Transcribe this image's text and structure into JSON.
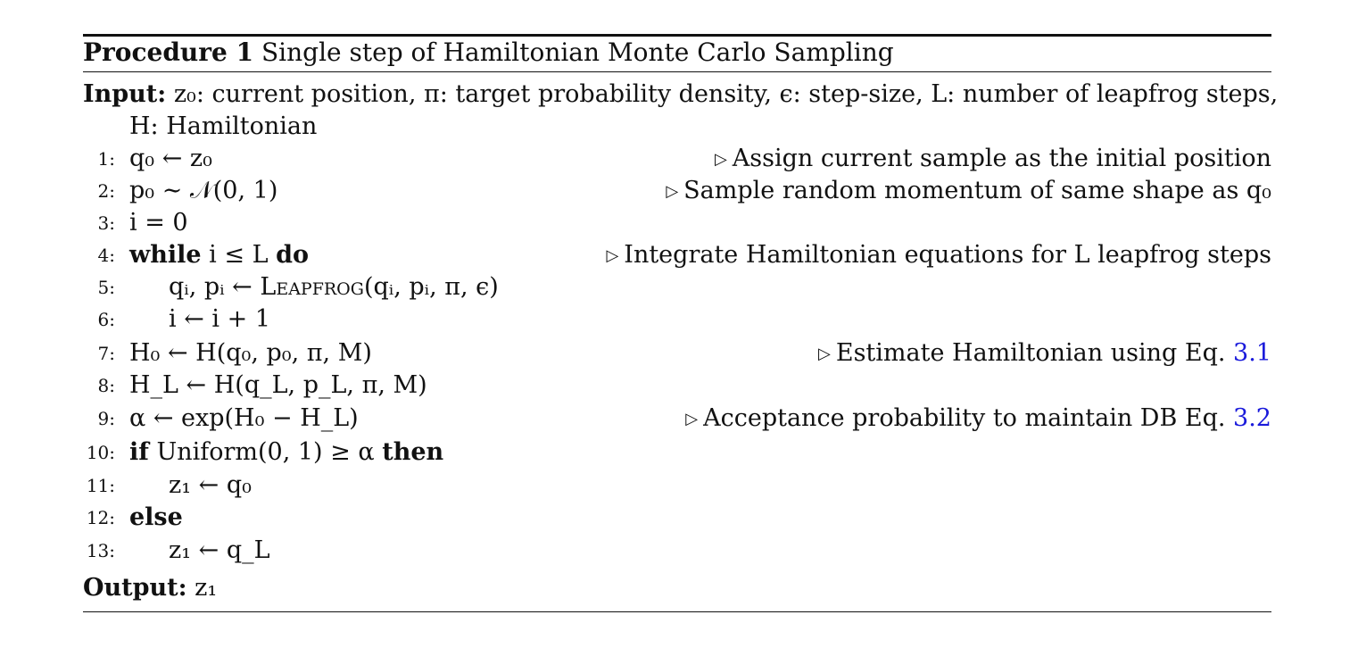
{
  "caption": {
    "label": "Procedure 1",
    "title": "Single step of Hamiltonian Monte Carlo Sampling"
  },
  "input": {
    "label": "Input:",
    "text_line1": "z₀: current position, π: target probability density, ϵ: step-size, L: number of leapfrog steps,",
    "text_line2": "H: Hamiltonian"
  },
  "lines": [
    {
      "num": "1:",
      "code": "q₀ ← z₀",
      "comment": "Assign current sample as the initial position"
    },
    {
      "num": "2:",
      "code": "p₀ ∼ 𝒩(0, 1)",
      "comment": "Sample random momentum of same shape as q₀"
    },
    {
      "num": "3:",
      "code": "i = 0",
      "comment": ""
    },
    {
      "num": "4:",
      "kw1": "while",
      "code": "i ≤ L",
      "kw2": "do",
      "comment": "Integrate Hamiltonian equations for L leapfrog steps"
    },
    {
      "num": "5:",
      "code_pre": "qᵢ,  pᵢ ← ",
      "code_fn": "Leapfrog",
      "code_post": "(qᵢ,  pᵢ,  π, ϵ)",
      "comment": ""
    },
    {
      "num": "6:",
      "code": "i ← i + 1",
      "comment": ""
    },
    {
      "num": "7:",
      "code": "H₀ ← H(q₀,  p₀, π, M)",
      "comment": "Estimate Hamiltonian using Eq.",
      "ref": "3.1"
    },
    {
      "num": "8:",
      "code": "H_L ← H(q_L,  p_L, π, M)",
      "comment": ""
    },
    {
      "num": "9:",
      "code": "α ← exp(H₀ − H_L)",
      "comment": "Acceptance probability to maintain DB Eq.",
      "ref": "3.2"
    },
    {
      "num": "10:",
      "kw1": "if",
      "code": "Uniform(0, 1) ≥ α",
      "kw2": "then",
      "comment": ""
    },
    {
      "num": "11:",
      "code": "z₁ ← q₀",
      "comment": ""
    },
    {
      "num": "12:",
      "kw1": "else",
      "comment": ""
    },
    {
      "num": "13:",
      "code": "z₁ ← q_L",
      "comment": ""
    }
  ],
  "output": {
    "label": "Output:",
    "text": "z₁"
  },
  "comment_marker": "▷"
}
